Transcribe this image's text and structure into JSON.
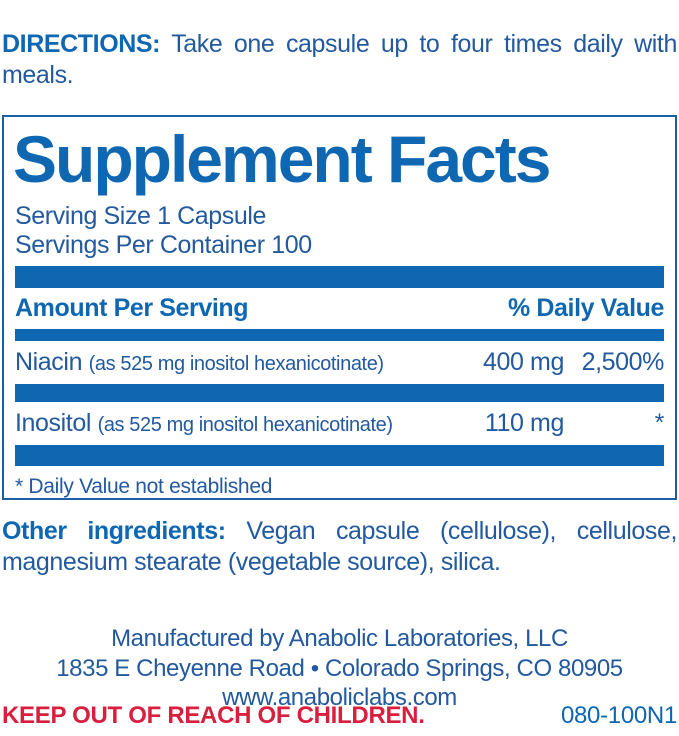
{
  "colors": {
    "brand_blue": "#0f67b2",
    "text_blue": "#23599e",
    "warning_red": "#d81f3e"
  },
  "directions": {
    "label": "DIRECTIONS:",
    "text": "Take one capsule up to four times daily with meals."
  },
  "supplement_facts": {
    "title": "Supplement Facts",
    "serving_size": "Serving Size 1 Capsule",
    "servings_per_container": "Servings Per Container 100",
    "columns": {
      "amount_header": "Amount Per Serving",
      "dv_header": "% Daily Value"
    },
    "rows": [
      {
        "name": "Niacin",
        "detail": "(as 525 mg inositol hexanicotinate)",
        "amount": "400 mg",
        "dv": "2,500%"
      },
      {
        "name": "Inositol",
        "detail": "(as 525 mg inositol hexanicotinate)",
        "amount": "110 mg",
        "dv": "*"
      }
    ],
    "footnote": "* Daily Value not established"
  },
  "other_ingredients": {
    "label": "Other ingredients:",
    "text": "Vegan capsule (cellulose), cellulose, magnesium stearate (vegetable source), silica."
  },
  "manufacturer": {
    "line1": "Manufactured by Anabolic Laboratories, LLC",
    "line2": "1835 E Cheyenne Road • Colorado Springs, CO 80905",
    "line3": "www.anaboliclabs.com"
  },
  "footer": {
    "warning": "KEEP OUT OF REACH OF CHILDREN.",
    "code": "080-100N1"
  }
}
